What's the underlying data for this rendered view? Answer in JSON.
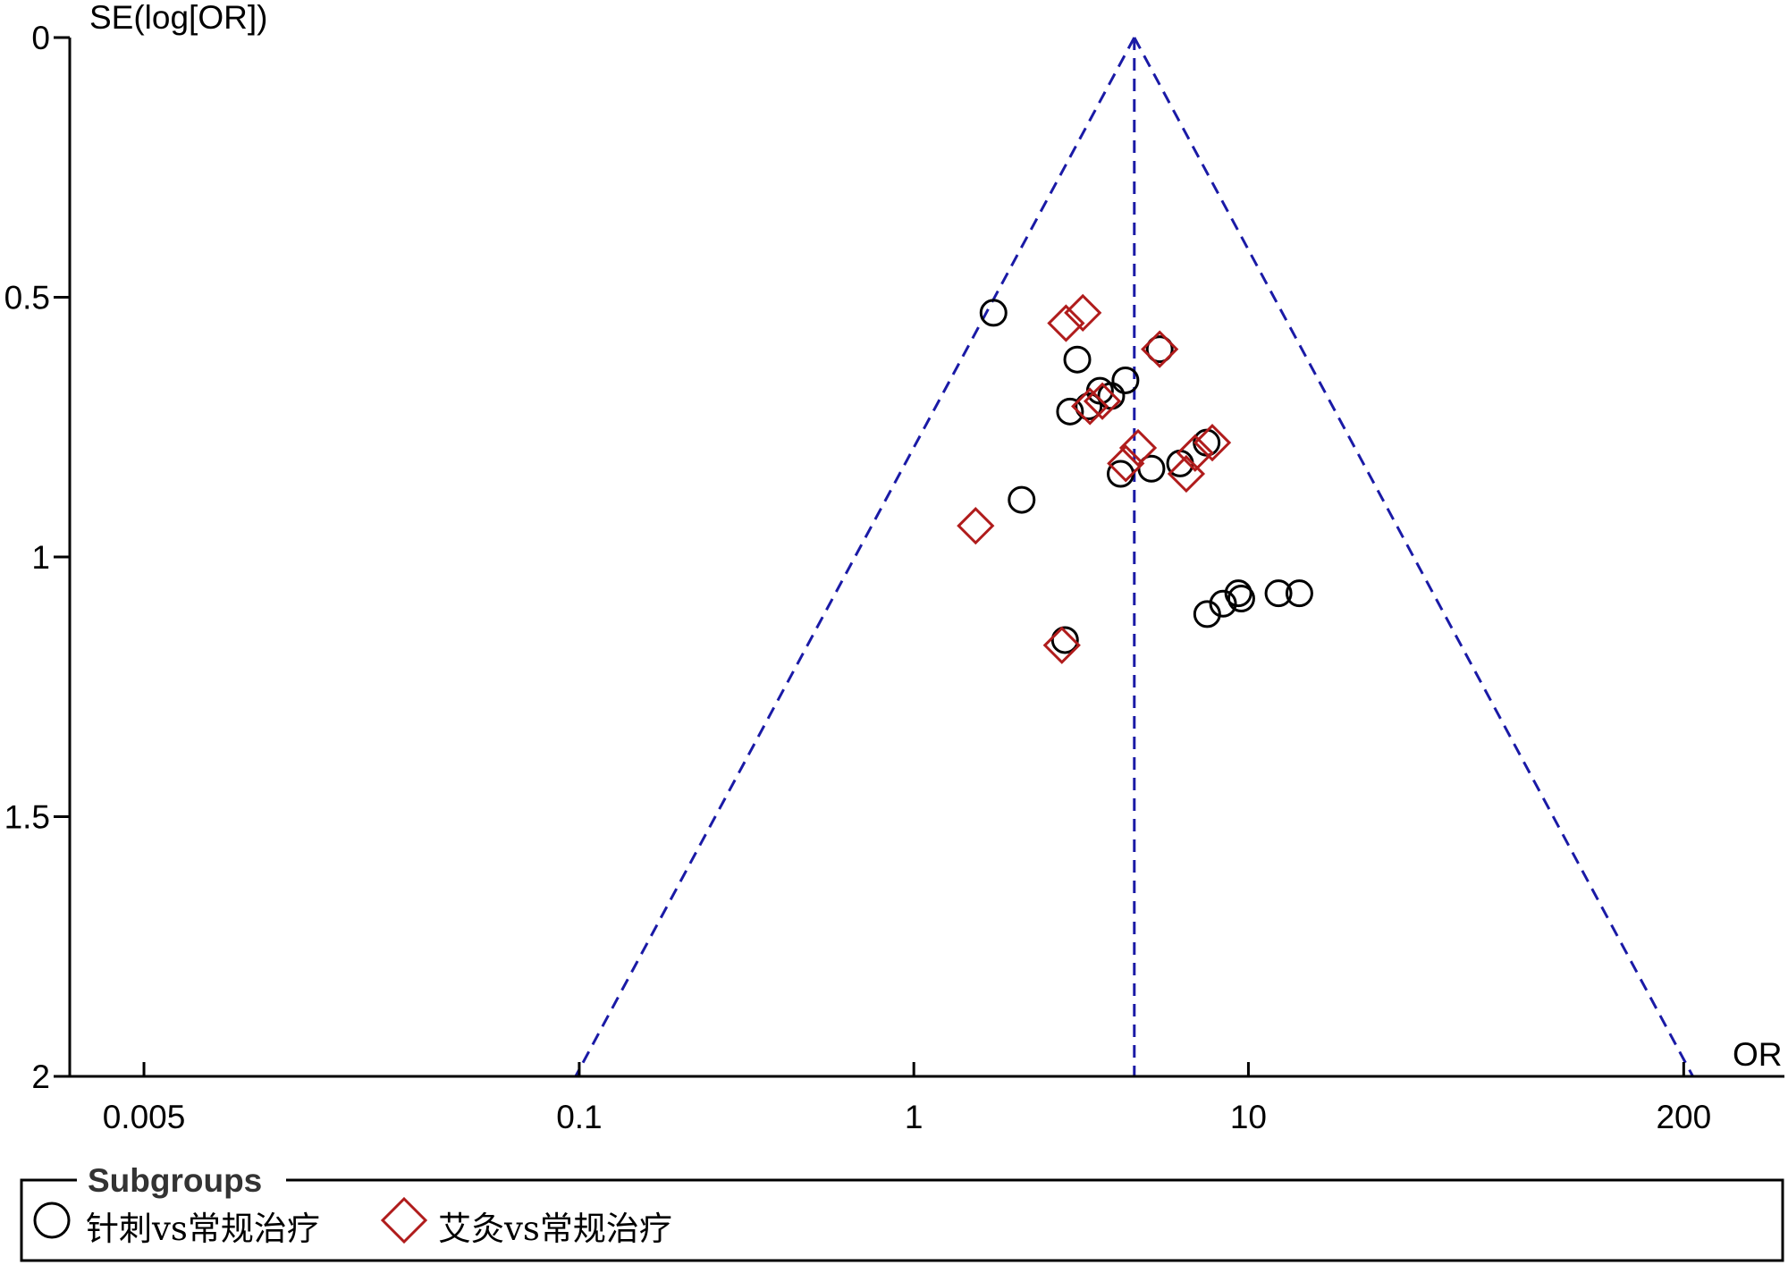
{
  "chart_data": {
    "type": "scatter",
    "title": "",
    "xlabel": "OR",
    "ylabel": "SE(log[OR])",
    "x_scale": "log",
    "xlim": [
      0.003,
      400
    ],
    "ylim": [
      0,
      2
    ],
    "y_reversed": true,
    "x_ticks": [
      0.005,
      0.1,
      1,
      10,
      200
    ],
    "x_tick_labels": [
      "0.005",
      "0.1",
      "1",
      "10",
      "200"
    ],
    "y_ticks": [
      0,
      0.5,
      1,
      1.5,
      2
    ],
    "y_tick_labels": [
      "0",
      "0.5",
      "1",
      "1.5",
      "2"
    ],
    "pooled_or": 4.56,
    "funnel": {
      "apex_se": 0,
      "base_se": 2,
      "base_left_or": 0.0975,
      "base_right_or": 213
    },
    "colors": {
      "funnel": "#1a1aa6",
      "series_1": "#000000",
      "series_2": "#b01c1c"
    },
    "legend": {
      "title": "Subgroups",
      "position": "bottom"
    },
    "series": [
      {
        "name": "针刺vs常规治疗",
        "marker": "circle",
        "points": [
          {
            "x": 1.73,
            "y": 0.53
          },
          {
            "x": 3.08,
            "y": 0.62
          },
          {
            "x": 4.29,
            "y": 0.66
          },
          {
            "x": 3.6,
            "y": 0.68
          },
          {
            "x": 3.89,
            "y": 0.69
          },
          {
            "x": 3.33,
            "y": 0.71
          },
          {
            "x": 2.93,
            "y": 0.72
          },
          {
            "x": 7.5,
            "y": 0.78
          },
          {
            "x": 6.25,
            "y": 0.82
          },
          {
            "x": 5.13,
            "y": 0.83
          },
          {
            "x": 4.15,
            "y": 0.84
          },
          {
            "x": 2.1,
            "y": 0.89
          },
          {
            "x": 14.2,
            "y": 1.07
          },
          {
            "x": 12.3,
            "y": 1.07
          },
          {
            "x": 9.33,
            "y": 1.07
          },
          {
            "x": 9.52,
            "y": 1.08
          },
          {
            "x": 8.4,
            "y": 1.09
          },
          {
            "x": 7.53,
            "y": 1.11
          },
          {
            "x": 2.83,
            "y": 1.16
          },
          {
            "x": 5.43,
            "y": 0.6
          }
        ]
      },
      {
        "name": "艾灸vs常规治疗",
        "marker": "diamond",
        "points": [
          {
            "x": 3.2,
            "y": 0.53
          },
          {
            "x": 2.85,
            "y": 0.55
          },
          {
            "x": 5.43,
            "y": 0.6
          },
          {
            "x": 3.36,
            "y": 0.71
          },
          {
            "x": 3.66,
            "y": 0.7
          },
          {
            "x": 4.68,
            "y": 0.79
          },
          {
            "x": 7.8,
            "y": 0.78
          },
          {
            "x": 6.93,
            "y": 0.8
          },
          {
            "x": 4.3,
            "y": 0.82
          },
          {
            "x": 6.52,
            "y": 0.84
          },
          {
            "x": 1.53,
            "y": 0.94
          },
          {
            "x": 2.77,
            "y": 1.17
          }
        ]
      }
    ]
  }
}
